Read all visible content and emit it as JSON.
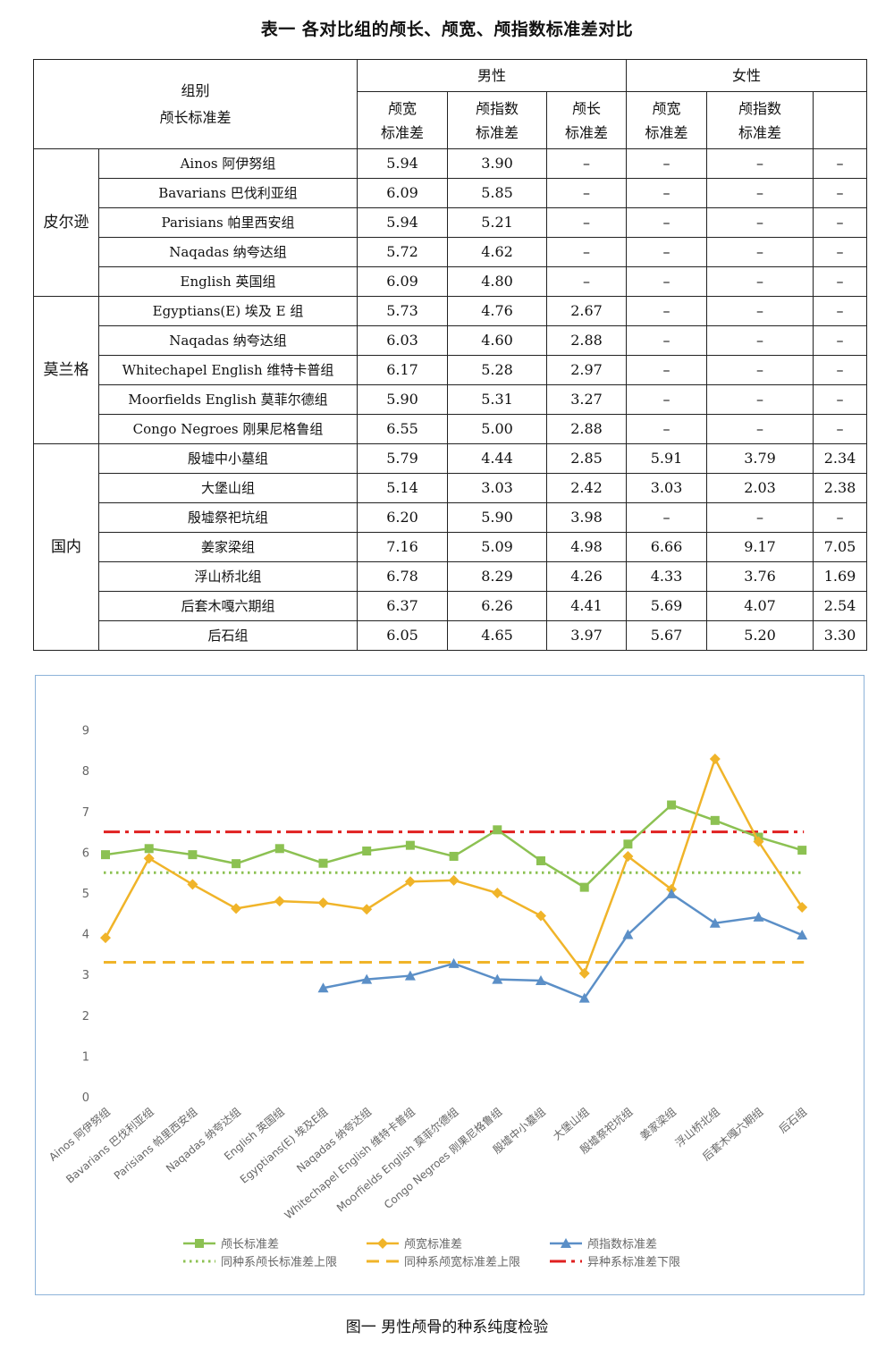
{
  "table_title": "表一  各对比组的颅长、颅宽、颅指数标准差对比",
  "header": {
    "group_col_line1": "组别",
    "group_col_line2": "颅长标准差",
    "male": "男性",
    "female": "女性",
    "male_cols": [
      [
        "颅宽",
        "标准差"
      ],
      [
        "颅指数",
        "标准差"
      ],
      [
        "颅长",
        "标准差"
      ]
    ],
    "female_cols": [
      [
        "颅宽",
        "标准差"
      ],
      [
        "颅指数",
        "标准差"
      ],
      [
        "",
        ""
      ]
    ]
  },
  "categories": [
    {
      "name": "皮尔逊",
      "rows": [
        [
          "Ainos 阿伊努组",
          "5.94",
          "3.90",
          "–",
          "–",
          "–",
          "–"
        ],
        [
          "Bavarians 巴伐利亚组",
          "6.09",
          "5.85",
          "–",
          "–",
          "–",
          "–"
        ],
        [
          "Parisians 帕里西安组",
          "5.94",
          "5.21",
          "–",
          "–",
          "–",
          "–"
        ],
        [
          "Naqadas 纳夸达组",
          "5.72",
          "4.62",
          "–",
          "–",
          "–",
          "–"
        ],
        [
          "English 英国组",
          "6.09",
          "4.80",
          "–",
          "–",
          "–",
          "–"
        ]
      ]
    },
    {
      "name": "莫兰格",
      "rows": [
        [
          "Egyptians(E) 埃及 E 组",
          "5.73",
          "4.76",
          "2.67",
          "–",
          "–",
          "–"
        ],
        [
          "Naqadas 纳夸达组",
          "6.03",
          "4.60",
          "2.88",
          "–",
          "–",
          "–"
        ],
        [
          "Whitechapel English 维特卡普组",
          "6.17",
          "5.28",
          "2.97",
          "–",
          "–",
          "–"
        ],
        [
          "Moorfields English 莫菲尔德组",
          "5.90",
          "5.31",
          "3.27",
          "–",
          "–",
          "–"
        ],
        [
          "Congo Negroes 刚果尼格鲁组",
          "6.55",
          "5.00",
          "2.88",
          "–",
          "–",
          "–"
        ]
      ]
    },
    {
      "name": "国内",
      "rows": [
        [
          "殷墟中小墓组",
          "5.79",
          "4.44",
          "2.85",
          "5.91",
          "3.79",
          "2.34"
        ],
        [
          "大堡山组",
          "5.14",
          "3.03",
          "2.42",
          "3.03",
          "2.03",
          "2.38"
        ],
        [
          "殷墟祭祀坑组",
          "6.20",
          "5.90",
          "3.98",
          "–",
          "–",
          "–"
        ],
        [
          "姜家梁组",
          "7.16",
          "5.09",
          "4.98",
          "6.66",
          "9.17",
          "7.05"
        ],
        [
          "浮山桥北组",
          "6.78",
          "8.29",
          "4.26",
          "4.33",
          "3.76",
          "1.69"
        ],
        [
          "后套木嘎六期组",
          "6.37",
          "6.26",
          "4.41",
          "5.69",
          "4.07",
          "2.54"
        ],
        [
          "后石组",
          "6.05",
          "4.65",
          "3.97",
          "5.67",
          "5.20",
          "3.30"
        ]
      ]
    }
  ],
  "figure_caption": "图一    男性颅骨的种系纯度检验",
  "chart_data": {
    "type": "line",
    "categories": [
      "Ainos 阿伊努组",
      "Bavarians 巴伐利亚组",
      "Parisians 帕里西安组",
      "Naqadas 纳夸达组",
      "English 英国组",
      "Egyptians(E) 埃及E组",
      "Naqadas 纳夸达组",
      "Whitechapel English 维特卡普组",
      "Moorfields English 莫菲尔德组",
      "Congo Negroes 刚果尼格鲁组",
      "殷墟中小墓组",
      "大堡山组",
      "殷墟祭祀坑组",
      "姜家梁组",
      "浮山桥北组",
      "后套木嘎六期组",
      "后石组"
    ],
    "ylim": [
      0,
      9
    ],
    "yticks": [
      "0",
      "1",
      "2",
      "3",
      "4",
      "5",
      "6",
      "7",
      "8",
      "9"
    ],
    "grid": false,
    "legend_position": "bottom",
    "series": [
      {
        "name": "颅长标准差",
        "color": "#8cc152",
        "marker": "square",
        "values": [
          5.94,
          6.09,
          5.94,
          5.72,
          6.09,
          5.73,
          6.03,
          6.17,
          5.9,
          6.55,
          5.79,
          5.14,
          6.2,
          7.16,
          6.78,
          6.37,
          6.05
        ]
      },
      {
        "name": "颅宽标准差",
        "color": "#f0b429",
        "marker": "diamond",
        "values": [
          3.9,
          5.85,
          5.21,
          4.62,
          4.8,
          4.76,
          4.6,
          5.28,
          5.31,
          5.0,
          4.44,
          3.03,
          5.9,
          5.09,
          8.29,
          6.26,
          4.65
        ]
      },
      {
        "name": "颅指数标准差",
        "color": "#5b8fc7",
        "marker": "triangle",
        "values": [
          null,
          null,
          null,
          null,
          null,
          2.67,
          2.88,
          2.97,
          3.27,
          2.88,
          2.85,
          2.42,
          3.98,
          4.98,
          4.26,
          4.41,
          3.97
        ]
      }
    ],
    "reference_lines": [
      {
        "name": "同种系颅长标准差上限",
        "value": 5.5,
        "color": "#8cc152",
        "style": "dotted"
      },
      {
        "name": "同种系颅宽标准差上限",
        "value": 3.3,
        "color": "#f0b429",
        "style": "dashed"
      },
      {
        "name": "异种系标准差下限",
        "value": 6.5,
        "color": "#e02020",
        "style": "dash-dot"
      }
    ]
  }
}
